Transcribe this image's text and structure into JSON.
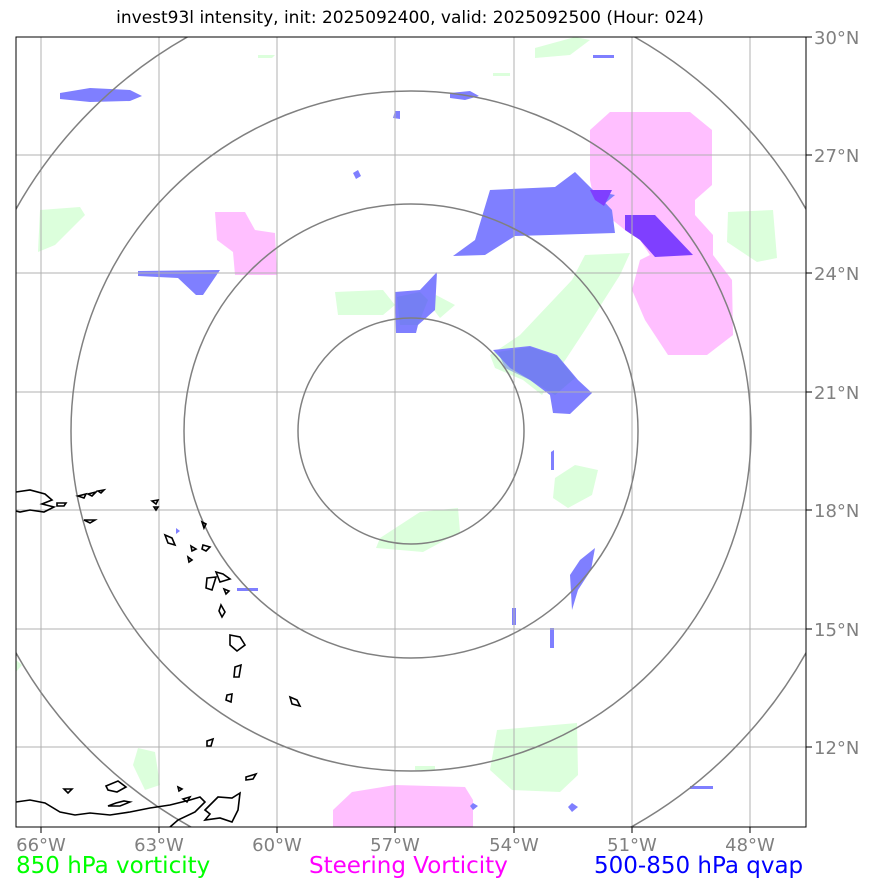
{
  "title": "invest93l intensity, init: 2025092400, valid: 2025092500 (Hour: 024)",
  "longitude_ticks": [
    "66°W",
    "63°W",
    "60°W",
    "57°W",
    "54°W",
    "51°W",
    "48°W"
  ],
  "latitude_ticks": [
    "30°N",
    "27°N",
    "24°N",
    "21°N",
    "18°N",
    "15°N",
    "12°N"
  ],
  "legend": {
    "left": {
      "label": "850 hPa vorticity",
      "color": "#00ff00"
    },
    "middle": {
      "label": "Steering Vorticity",
      "color": "#ff00ff"
    },
    "right": {
      "label": "500-850 hPa qvap",
      "color": "#0000ff"
    }
  },
  "colors": {
    "vorticity_fill": "#dcffdc",
    "steering_fill": "#ffbfff",
    "qvap_fill": "#7f7fff",
    "range_rings": "#808080",
    "grid": "#b0b0b0",
    "coast": "#000000"
  }
}
